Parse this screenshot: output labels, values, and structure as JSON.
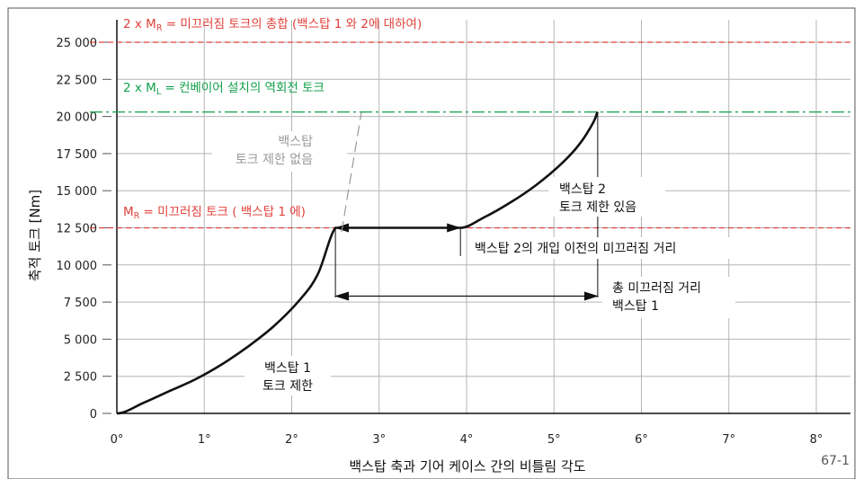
{
  "chart_data": {
    "type": "line",
    "xlabel": "백스탑 축과 기어 케이스 간의 비틀림 각도",
    "ylabel": "축적 토크 [Nm]",
    "xlim": [
      0,
      8
    ],
    "ylim": [
      0,
      25000
    ],
    "x_ticks": [
      0,
      1,
      2,
      3,
      4,
      5,
      6,
      7,
      8
    ],
    "x_tick_labels": [
      "0°",
      "1°",
      "2°",
      "3°",
      "4°",
      "5°",
      "6°",
      "7°",
      "8°"
    ],
    "y_ticks": [
      0,
      2500,
      5000,
      7500,
      10000,
      12500,
      15000,
      17500,
      20000,
      22500,
      25000
    ],
    "y_tick_labels": [
      "0",
      "2 500",
      "5 000",
      "7 500",
      "10 000",
      "12 500",
      "15 000",
      "17 500",
      "20 000",
      "22 500",
      "25 000"
    ],
    "grid": true,
    "series": [
      {
        "color": "#111111",
        "x": [
          0,
          0.3,
          0.6,
          0.9,
          1.2,
          1.5,
          1.8,
          2.1,
          2.3,
          2.5,
          3.93,
          4.2,
          4.5,
          4.8,
          5.1,
          5.3,
          5.45,
          5.5
        ],
        "y": [
          0,
          700,
          1500,
          2300,
          3300,
          4500,
          5900,
          7700,
          9400,
          12500,
          12500,
          13200,
          14200,
          15400,
          16900,
          18200,
          19600,
          20300
        ]
      }
    ],
    "reference_lines": [
      {
        "y": 25000,
        "color": "#e0413a",
        "style": "dashed",
        "label_parts": [
          "2 x M",
          "R",
          " = 미끄러짐 토크의 총합 (백스탑 1 와 2에 대하여)"
        ]
      },
      {
        "y": 20300,
        "color": "#11a04a",
        "style": "dashdot",
        "label_parts": [
          "2 x M",
          "L",
          " = 컨베이어 설치의 역회전 토크"
        ]
      },
      {
        "y": 12500,
        "color": "#e0413a",
        "style": "dashed",
        "label_parts": [
          "M",
          "R",
          " = 미끄러짐 토크 ( 백스탑 1 에)"
        ]
      }
    ],
    "annotations": {
      "backstop1_lines": [
        "백스탑 1",
        "토크 제한"
      ],
      "backstop_nolimit_lines": [
        "백스탑",
        "토크 제한 없음"
      ],
      "backstop2_lines": [
        "백스탑 2",
        "토크 제한 있음"
      ],
      "slip_before": "백스탑 2의 개입 이전의 미끄러짐 거리",
      "slip_total_lines": [
        "총 미끄러짐 거리",
        "백스탑 1"
      ]
    },
    "dimension_arrows": [
      {
        "x_from": 2.5,
        "x_to": 3.93,
        "y": 12500
      },
      {
        "x_from": 2.5,
        "x_to": 5.5,
        "y": 7900
      }
    ],
    "figure_number": "67-1"
  }
}
